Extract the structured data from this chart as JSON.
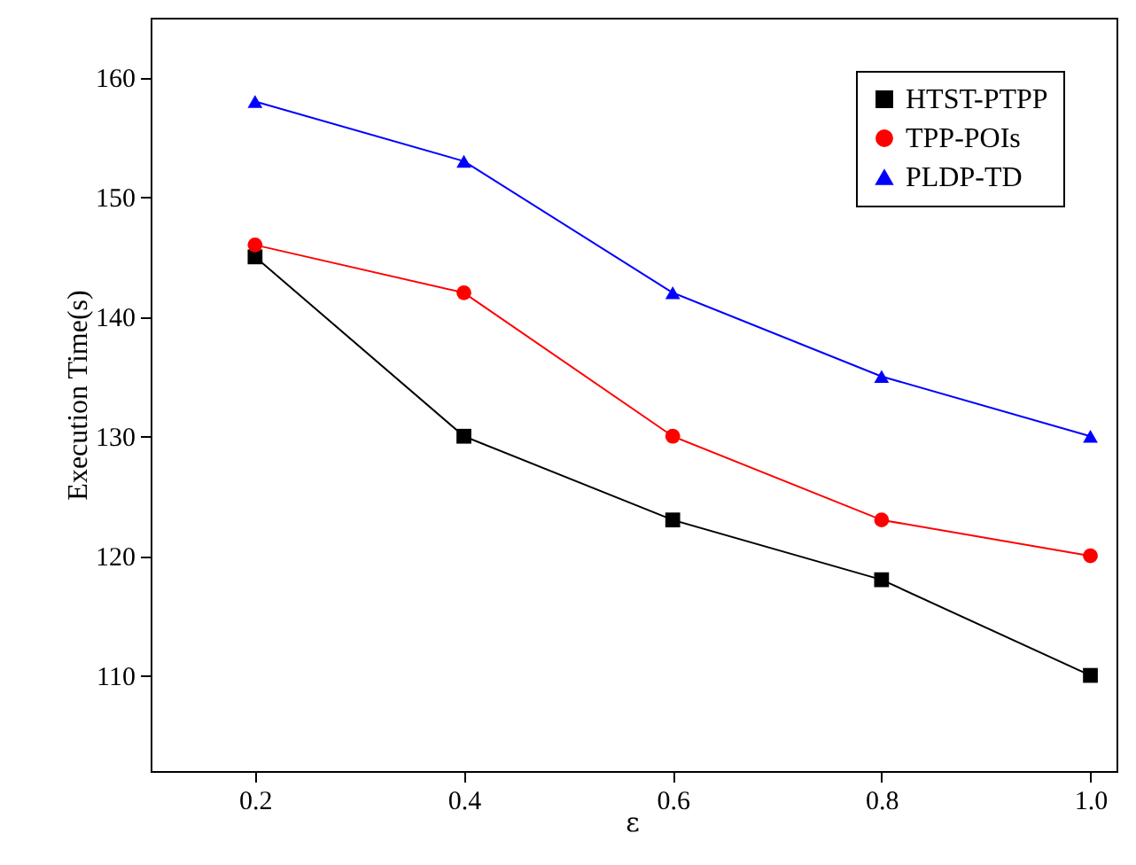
{
  "chart_data": {
    "type": "line",
    "xlabel": "ε",
    "ylabel": "Execution Time(s)",
    "x": [
      0.2,
      0.4,
      0.6,
      0.8,
      1.0
    ],
    "series": [
      {
        "name": "HTST-PTPP",
        "color": "#000000",
        "marker": "square",
        "values": [
          145,
          130,
          123,
          118,
          110
        ]
      },
      {
        "name": "TPP-POIs",
        "color": "#ff0000",
        "marker": "circle",
        "values": [
          146,
          142,
          130,
          123,
          120
        ]
      },
      {
        "name": "PLDP-TD",
        "color": "#0000ff",
        "marker": "triangle",
        "values": [
          158,
          153,
          142,
          135,
          130
        ]
      }
    ],
    "xlim": [
      0.1,
      1.025
    ],
    "ylim": [
      102,
      165
    ],
    "xticks": [
      0.2,
      0.4,
      0.6,
      0.8,
      {
        "value": 1.0,
        "label": "1.0"
      }
    ],
    "yticks": [
      110,
      120,
      130,
      140,
      150,
      160
    ],
    "grid": false,
    "legend": "top right",
    "line_style": "solid"
  }
}
